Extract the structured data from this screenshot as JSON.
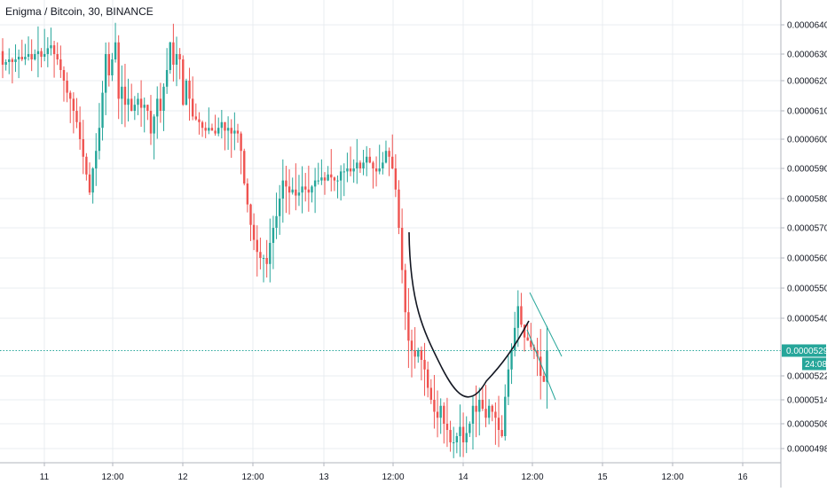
{
  "chart": {
    "title": "Enigma / Bitcoin, 30, BINANCE"
  },
  "chart_data": {
    "type": "candlestick",
    "title": "Enigma / Bitcoin, 30, BINANCE",
    "y_ticks": [
      "0.00006400",
      "0.00006300",
      "0.00006200",
      "0.00006100",
      "0.00006000",
      "0.00005900",
      "0.00005800",
      "0.00005700",
      "0.00005600",
      "0.00005500",
      "0.00005400",
      "0.00005220",
      "0.00005140",
      "0.00005060",
      "0.00004980"
    ],
    "y_tick_values": [
      6.4e-05,
      6.3e-05,
      6.2e-05,
      6.1e-05,
      6e-05,
      5.9e-05,
      5.8e-05,
      5.7e-05,
      5.6e-05,
      5.5e-05,
      5.4e-05,
      5.22e-05,
      5.14e-05,
      5.06e-05,
      4.98e-05
    ],
    "x_ticks": [
      "11",
      "12:00",
      "12",
      "12:00",
      "13",
      "12:00",
      "14",
      "12:00",
      "15",
      "12:00",
      "16"
    ],
    "last_price": "0.00005299",
    "last_price_value": 5.299e-05,
    "countdown": "24:08",
    "colors": {
      "up": "#26a69a",
      "down": "#ef5350",
      "grid": "#e9ecf1",
      "last_price": "#26a69a",
      "curve": "#131722",
      "channel": "#26a69a"
    },
    "grid": true,
    "candles_start_time": "11 00:00",
    "candle_interval_minutes": 30,
    "closes": [
      6.26e-05,
      6.27e-05,
      6.28e-05,
      6.27e-05,
      6.28e-05,
      6.29e-05,
      6.28e-05,
      6.29e-05,
      6.3e-05,
      6.28e-05,
      6.3e-05,
      6.31e-05,
      6.29e-05,
      6.3e-05,
      6.32e-05,
      6.33e-05,
      6.3e-05,
      6.28e-05,
      6.24e-05,
      6.2e-05,
      6.16e-05,
      6.14e-05,
      6.1e-05,
      6.06e-05,
      6e-05,
      5.94e-05,
      5.88e-05,
      5.82e-05,
      5.9e-05,
      5.96e-05,
      6.04e-05,
      6.16e-05,
      6.3e-05,
      6.22e-05,
      6.28e-05,
      6.34e-05,
      6.14e-05,
      6.18e-05,
      6.12e-05,
      6.14e-05,
      6.1e-05,
      6.12e-05,
      6.14e-05,
      6.11e-05,
      6.12e-05,
      6.1e-05,
      6.02e-05,
      6.08e-05,
      6.14e-05,
      6.1e-05,
      6.18e-05,
      6.24e-05,
      6.34e-05,
      6.26e-05,
      6.3e-05,
      6.28e-05,
      6.12e-05,
      6.2e-05,
      6.14e-05,
      6.08e-05,
      6.07e-05,
      6.06e-05,
      6.04e-05,
      6.03e-05,
      6.04e-05,
      6.03e-05,
      6.02e-05,
      6.04e-05,
      6.06e-05,
      6.03e-05,
      6.04e-05,
      6.02e-05,
      6.03e-05,
      6.02e-05,
      5.96e-05,
      5.85e-05,
      5.78e-05,
      5.71e-05,
      5.66e-05,
      5.62e-05,
      5.6e-05,
      5.6e-05,
      5.58e-05,
      5.65e-05,
      5.7e-05,
      5.74e-05,
      5.8e-05,
      5.86e-05,
      5.84e-05,
      5.82e-05,
      5.83e-05,
      5.81e-05,
      5.82e-05,
      5.84e-05,
      5.83e-05,
      5.82e-05,
      5.84e-05,
      5.86e-05,
      5.86e-05,
      5.87e-05,
      5.86e-05,
      5.88e-05,
      5.87e-05,
      5.86e-05,
      5.86e-05,
      5.89e-05,
      5.89e-05,
      5.9e-05,
      5.89e-05,
      5.9e-05,
      5.92e-05,
      5.9e-05,
      5.92e-05,
      5.94e-05,
      5.92e-05,
      5.9e-05,
      5.89e-05,
      5.9e-05,
      5.92e-05,
      5.96e-05,
      5.94e-05,
      5.9e-05,
      5.83e-05,
      5.7e-05,
      5.56e-05,
      5.42e-05,
      5.33e-05,
      5.3e-05,
      5.28e-05,
      5.3e-05,
      5.27e-05,
      5.24e-05,
      5.18e-05,
      5.14e-05,
      5.1e-05,
      5.08e-05,
      5.12e-05,
      5.06e-05,
      5.04e-05,
      5e-05,
      5e-05,
      5.02e-05,
      5.05e-05,
      5e-05,
      5.03e-05,
      5.06e-05,
      5.12e-05,
      5.1e-05,
      5.14e-05,
      5.11e-05,
      5.08e-05,
      5.12e-05,
      5.1e-05,
      5.08e-05,
      5.04e-05,
      5.02e-05,
      5.15e-05,
      5.24e-05,
      5.3e-05,
      5.37e-05,
      5.44e-05,
      5.38e-05,
      5.34e-05,
      5.33e-05,
      5.31e-05,
      5.3e-05,
      5.28e-05,
      5.22e-05,
      5.2e-05,
      5.3e-05
    ]
  }
}
